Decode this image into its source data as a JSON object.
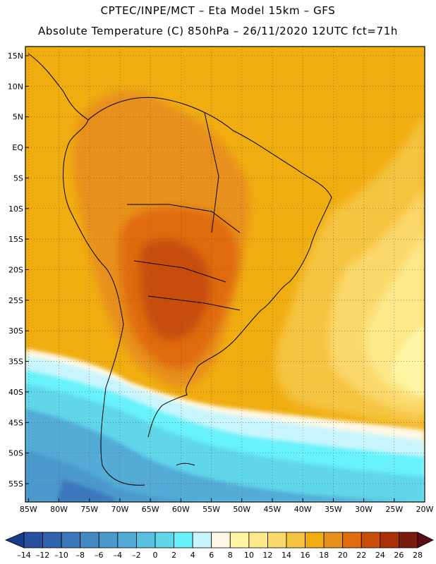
{
  "header": {
    "title_line1": "CPTEC/INPE/MCT –  Eta Model 15km – GFS",
    "title_line2": "Absolute Temperature (C) 850hPa – 26/11/2020 12UTC fct=71h"
  },
  "map": {
    "lat_labels": [
      "15N",
      "10N",
      "5N",
      "EQ",
      "5S",
      "10S",
      "15S",
      "20S",
      "25S",
      "30S",
      "35S",
      "40S",
      "45S",
      "50S",
      "55S"
    ],
    "lat_values": [
      15,
      10,
      5,
      0,
      -5,
      -10,
      -15,
      -20,
      -25,
      -30,
      -35,
      -40,
      -45,
      -50,
      -55
    ],
    "lon_labels": [
      "85W",
      "80W",
      "75W",
      "70W",
      "65W",
      "60W",
      "55W",
      "50W",
      "45W",
      "40W",
      "35W",
      "30W",
      "25W",
      "20W"
    ],
    "lon_values": [
      -85,
      -80,
      -75,
      -70,
      -65,
      -60,
      -55,
      -50,
      -45,
      -40,
      -35,
      -30,
      -25,
      -20
    ],
    "extent": {
      "lon_min": -85.5,
      "lon_max": -20,
      "lat_min": -58,
      "lat_max": 16.5
    },
    "gridlines": "dotted",
    "field_icon": "temperature-field",
    "coastline_icon": "coastline-outline"
  },
  "colorbar": {
    "labels": [
      "-14",
      "-12",
      "-10",
      "-8",
      "-6",
      "-4",
      "-2",
      "0",
      "2",
      "4",
      "6",
      "8",
      "10",
      "12",
      "14",
      "16",
      "18",
      "20",
      "22",
      "24",
      "26",
      "28"
    ],
    "colors": [
      "#1a3a8c",
      "#28509e",
      "#2f65ae",
      "#3a78bb",
      "#4389c4",
      "#4b99cc",
      "#53abd6",
      "#59c2e0",
      "#5fd6ea",
      "#68f2fb",
      "#c8f5fd",
      "#fff8e4",
      "#fff5a2",
      "#fde98a",
      "#fbd86a",
      "#f5c440",
      "#f0ad10",
      "#e8901c",
      "#e06c0c",
      "#c84d08",
      "#a83206",
      "#7a1c10",
      "#5c0c14"
    ]
  }
}
